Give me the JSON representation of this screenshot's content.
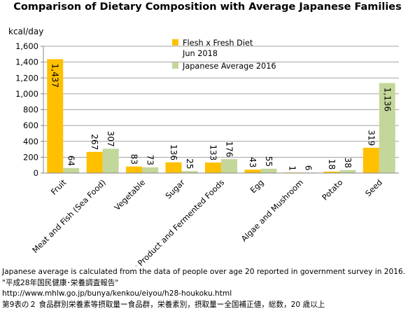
{
  "chart_data": {
    "type": "bar",
    "title": "Comparison of Dietary Composition with Average Japanese Families",
    "ylabel": "kcal/day",
    "xlabel": "",
    "ylim": [
      0,
      1600
    ],
    "yticks": [
      0,
      200,
      400,
      600,
      800,
      1000,
      1200,
      1400,
      1600
    ],
    "ytick_labels": [
      "0",
      "200",
      "400",
      "600",
      "800",
      "1,000",
      "1,200",
      "1,400",
      "1,600"
    ],
    "grid": true,
    "legend_position": "top-right",
    "categories": [
      "Fruit",
      "Meat and Fish (Sea Food)",
      "Vegetable",
      "Sugar",
      "Dairy Product and Fermented Foods",
      "Egg",
      "Algae and Mushroom",
      "Potato",
      "Seed"
    ],
    "series": [
      {
        "name": "Flesh x Fresh Diet Jun 2018",
        "legend_lines": [
          "Flesh x Fresh Diet",
          "Jun 2018"
        ],
        "color": "#FFC000",
        "values": [
          1437,
          267,
          83,
          136,
          133,
          43,
          1,
          18,
          319
        ],
        "value_labels": [
          "1,437",
          "267",
          "83",
          "136",
          "133",
          "43",
          "1",
          "18",
          "319"
        ]
      },
      {
        "name": "Japanese Average 2016",
        "legend_lines": [
          "Japanese Average 2016"
        ],
        "color": "#C4D79B",
        "values": [
          64,
          307,
          73,
          25,
          176,
          55,
          6,
          38,
          1136
        ],
        "value_labels": [
          "64",
          "307",
          "73",
          "25",
          "176",
          "55",
          "6",
          "38",
          "1,136"
        ]
      }
    ]
  },
  "notes": [
    "Japanese average is calculated from the data of people over age 20 reported in government survey in 2016.",
    "\"平成28年国民健康･栄養調査報告\"",
    "http://www.mhlw.go.jp/bunya/kenkou/eiyou/h28-houkoku.html",
    "第9表の２ 食品群別栄養素等摂取量ー食品群，栄養素別，摂取量ー全国補正値，総数，20 歳以上"
  ]
}
